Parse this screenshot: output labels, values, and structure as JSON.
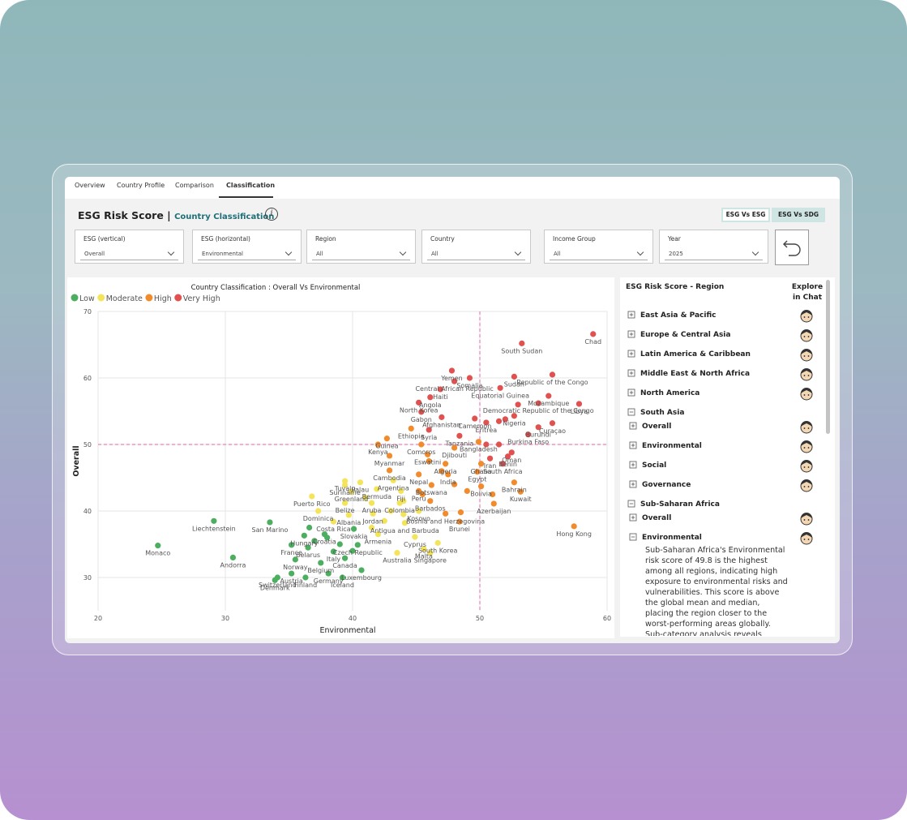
{
  "tabs": [
    "Overview",
    "Country Profile",
    "Comparison",
    "Classification"
  ],
  "active_tab": 3,
  "header": {
    "title": "ESG Risk Score |",
    "subtitle": "Country Classification"
  },
  "buttons": [
    "ESG Vs ESG",
    "ESG Vs SDG"
  ],
  "filters": [
    {
      "label": "ESG (vertical)",
      "value": "Overall"
    },
    {
      "label": "ESG (horizontal)",
      "value": "Environmental"
    },
    {
      "label": "Region",
      "value": "All"
    },
    {
      "label": "Country",
      "value": "All"
    },
    {
      "label": "Income Group",
      "value": "All"
    },
    {
      "label": "Year",
      "value": "2025"
    }
  ],
  "chart_data": {
    "type": "scatter",
    "title": "Country Classification :  Overall Vs Environmental",
    "x_label": "Environmental",
    "y_label": "Overall",
    "xlim": [
      20,
      60
    ],
    "ylim": [
      25,
      70
    ],
    "xticks": [
      20,
      30,
      40,
      50,
      60
    ],
    "yticks": [
      30,
      40,
      50,
      60,
      70
    ],
    "grid": true,
    "legend": "top-left",
    "reference_lines": {
      "x": 50,
      "y": 50,
      "color": "#ee7fb8"
    },
    "series": [
      {
        "name": "Low",
        "color": "#4cae5f",
        "x": [
          33.5,
          29.1,
          36.2,
          37.8,
          40.1,
          40.4,
          35.2,
          36.5,
          38.5,
          24.7,
          30.6,
          35.5,
          37.5,
          39.4,
          35.2,
          38.1,
          40.7,
          34.1,
          36.3,
          39.2,
          33.9,
          37.0,
          38.0,
          39.0,
          40.0,
          36.6
        ],
        "values": [
          38.3,
          38.5,
          36.3,
          36.5,
          37.3,
          34.9,
          34.9,
          34.5,
          33.9,
          34.8,
          33.0,
          32.7,
          32.2,
          32.9,
          30.6,
          30.6,
          31.1,
          30.0,
          30.0,
          30.0,
          29.6,
          35.5,
          36.0,
          35.0,
          34.0,
          37.5
        ],
        "labels": [
          "San Marino",
          "Liechtenstein",
          "Hungary",
          "Croatia",
          "Slovakia",
          "Czech Republic",
          "France",
          "Belarus",
          "Italy",
          "Monaco",
          "Andorra",
          "Norway",
          "Belgium",
          "Canada",
          "Austria",
          "Germany",
          "Luxembourg",
          "Switzerland",
          "Finland",
          "Iceland",
          "Denmark",
          null,
          null,
          null,
          null,
          null
        ]
      },
      {
        "name": "Moderate",
        "color": "#f4e45a",
        "x": [
          39.4,
          40.6,
          39.4,
          43.2,
          36.8,
          39.9,
          41.9,
          43.8,
          39.4,
          41.5,
          43.7,
          37.3,
          45.2,
          39.7,
          38.5,
          41.6,
          44.1,
          42.0,
          44.9,
          46.7,
          45.6,
          43.5,
          46.1,
          41.0,
          43.0,
          44.0,
          42.5,
          41.5,
          44.0
        ],
        "values": [
          44.5,
          44.3,
          43.9,
          44.6,
          42.2,
          42.9,
          43.3,
          43.0,
          41.2,
          41.2,
          41.2,
          40.0,
          40.0,
          39.4,
          38.4,
          39.6,
          38.2,
          36.5,
          36.1,
          35.2,
          34.3,
          33.7,
          33.7,
          42.0,
          40.0,
          39.5,
          38.5,
          37.5,
          41.5
        ],
        "labels": [
          "Tuvalu",
          "Palau",
          "Suriname",
          "Argentina",
          "Puerto Rico",
          "Greenland",
          "Bermuda",
          "Fiji",
          "Belize",
          "Aruba",
          "Colombia",
          "Dominica",
          "Kosovo",
          "Albania",
          "Costa Rica",
          "Jordan",
          "Antigua and Barbuda",
          "Armenia",
          "Cyprus",
          "South Korea",
          "Malta",
          "Australia",
          "Singapore",
          null,
          null,
          null,
          null,
          null,
          null
        ]
      },
      {
        "name": "High",
        "color": "#f28b2c",
        "x": [
          44.6,
          49.9,
          42.0,
          42.7,
          45.4,
          48.0,
          42.9,
          45.9,
          47.3,
          50.1,
          42.9,
          45.2,
          47.5,
          49.8,
          46.2,
          50.1,
          52.7,
          45.2,
          53.2,
          46.1,
          51.1,
          47.3,
          48.4,
          57.4,
          47.0,
          48.0,
          45.5,
          49.0,
          51.0,
          48.5,
          46.0
        ],
        "values": [
          52.4,
          50.4,
          50.0,
          50.9,
          50.0,
          49.5,
          48.3,
          48.5,
          47.1,
          47.1,
          46.1,
          45.5,
          45.5,
          45.9,
          43.9,
          43.7,
          44.3,
          43.0,
          42.9,
          41.5,
          41.1,
          39.6,
          38.4,
          37.7,
          46.0,
          44.0,
          42.5,
          43.0,
          42.5,
          39.8,
          47.5
        ],
        "labels": [
          "Ethiopia",
          "Bangladesh",
          "Kenya",
          "Guinea",
          "Comoros",
          "Djibouti",
          "Myanmar",
          "Eswatini",
          "Algeria",
          "Ghana",
          "Cambodia",
          "Nepal",
          "India",
          "Egypt",
          "Botswana",
          "Bolivia",
          "Bahrain",
          "Peru",
          "Kuwait",
          "Barbados",
          "Azerbaijan",
          "Bosnia and Herzegovina",
          "Brunei",
          "Hong Kong",
          null,
          null,
          null,
          null,
          null,
          null,
          null
        ]
      },
      {
        "name": "Very High",
        "color": "#e0514f",
        "x": [
          58.9,
          53.3,
          47.8,
          49.2,
          52.7,
          55.7,
          48.0,
          46.9,
          51.6,
          45.2,
          46.1,
          55.4,
          54.6,
          57.8,
          45.4,
          47.0,
          49.6,
          52.7,
          55.7,
          50.5,
          54.6,
          46.0,
          48.4,
          53.8,
          52.5,
          50.8,
          52.2,
          51.8,
          53.0,
          51.5,
          52.0,
          50.5,
          51.5
        ],
        "values": [
          66.6,
          65.2,
          61.1,
          60.0,
          60.2,
          60.5,
          59.5,
          58.3,
          58.5,
          56.3,
          57.1,
          57.3,
          56.2,
          56.1,
          54.9,
          54.1,
          53.9,
          54.3,
          53.2,
          53.3,
          52.6,
          52.2,
          51.3,
          51.5,
          48.8,
          47.9,
          48.2,
          47.1,
          56.0,
          53.5,
          53.8,
          50.0,
          50.0
        ],
        "labels": [
          "Chad",
          "South Sudan",
          "Yemen",
          "Somalia",
          "Sudan",
          "Republic of the Congo",
          "Central African Republic",
          "Haiti",
          "Equatorial Guinea",
          "North Korea",
          "Angola",
          "Mozambique",
          "Democratic Republic of the Congo",
          "Libya",
          "Gabon",
          "Afghanistan",
          "Cameroon",
          "Nigeria",
          "Curaçao",
          "Eritrea",
          "Burundi",
          "Syria",
          "Tanzania",
          "Burkina Faso",
          "Oman",
          "Iran",
          "Benin",
          "South Africa",
          null,
          null,
          null,
          null,
          null
        ]
      }
    ]
  },
  "panel": {
    "title": "ESG Risk Score - Region",
    "action_header": "Explore in Chat",
    "items": [
      {
        "label": "East Asia & Pacific",
        "level": 0,
        "expanded": false
      },
      {
        "label": "Europe & Central Asia",
        "level": 0,
        "expanded": false
      },
      {
        "label": "Latin America & Caribbean",
        "level": 0,
        "expanded": false
      },
      {
        "label": "Middle East & North Africa",
        "level": 0,
        "expanded": false
      },
      {
        "label": "North America",
        "level": 0,
        "expanded": false
      },
      {
        "label": "South Asia",
        "level": 0,
        "expanded": true
      },
      {
        "label": "Overall",
        "level": 1,
        "expanded": false
      },
      {
        "label": "Environmental",
        "level": 1,
        "expanded": false
      },
      {
        "label": "Social",
        "level": 1,
        "expanded": false
      },
      {
        "label": "Governance",
        "level": 1,
        "expanded": false
      },
      {
        "label": "Sub-Saharan Africa",
        "level": 0,
        "expanded": true
      },
      {
        "label": "Overall",
        "level": 1,
        "expanded": false
      },
      {
        "label": "Environmental",
        "level": 1,
        "expanded": true
      }
    ],
    "text": "Sub-Saharan Africa's Environmental risk score of 49.8 is the highest among all regions, indicating high exposure to environmental risks and vulnerabilities. This score is above the global mean and median, placing the region closer to the worst-performing areas globally. Sub-category analysis reveals"
  }
}
